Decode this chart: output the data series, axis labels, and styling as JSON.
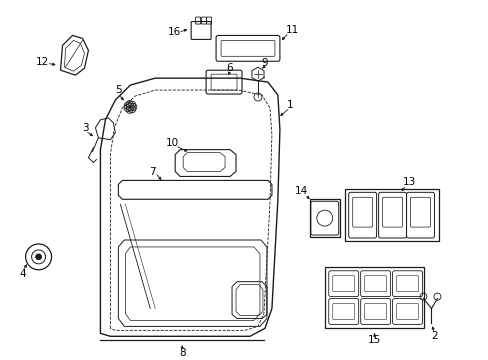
{
  "bg_color": "#ffffff",
  "line_color": "#1a1a1a",
  "fig_width": 4.89,
  "fig_height": 3.6,
  "dpi": 100,
  "label_fs": 7.5
}
